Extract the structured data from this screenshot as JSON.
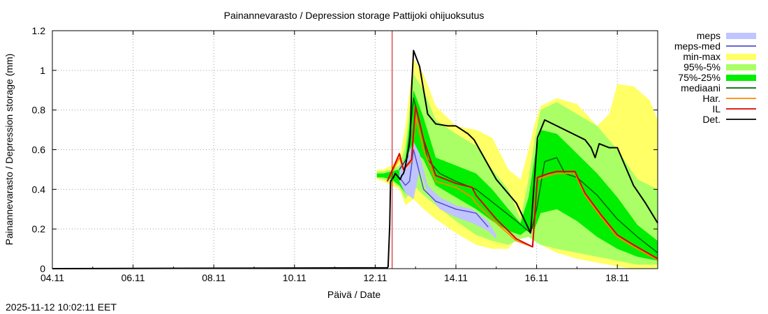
{
  "chart_data": {
    "type": "area",
    "title": "Painannevarasto / Depression storage    Pattijoki ohijuoksutus",
    "xlabel": "Päivä / Date",
    "ylabel": "Painannevarasto / Depression storage (mm)",
    "timestamp": "2025-11-12 10:02:11 EET",
    "x_range_days": [
      0,
      15
    ],
    "ylim": [
      0,
      1.2
    ],
    "x_ticks": [
      {
        "day": 0,
        "label": "04.11"
      },
      {
        "day": 2,
        "label": "06.11"
      },
      {
        "day": 4,
        "label": "08.11"
      },
      {
        "day": 6,
        "label": "10.11"
      },
      {
        "day": 8,
        "label": "12.11"
      },
      {
        "day": 10,
        "label": "14.11"
      },
      {
        "day": 12,
        "label": "16.11"
      },
      {
        "day": 14,
        "label": "18.11"
      }
    ],
    "y_ticks": [
      {
        "value": 0,
        "label": "0"
      },
      {
        "value": 0.2,
        "label": "0.2"
      },
      {
        "value": 0.4,
        "label": "0.4"
      },
      {
        "value": 0.6,
        "label": "0.6"
      },
      {
        "value": 0.8,
        "label": "0.8"
      },
      {
        "value": 1.0,
        "label": "1"
      },
      {
        "value": 1.2,
        "label": "1.2"
      }
    ],
    "forecast_start_day": 8.42,
    "colors": {
      "minmax": "#ffff66",
      "p95_5": "#aaff66",
      "p75_25": "#00ee00",
      "meps": "#c0c4ff",
      "meps_med": "#5050d0",
      "mediaani": "#006400",
      "har": "#ff8800",
      "il": "#dd0000",
      "det": "#000000",
      "forecast_line": "#cc0000",
      "grid": "#a0a0a0"
    },
    "legend": [
      {
        "key": "meps",
        "label": "meps",
        "style": "band",
        "color": "#c0c4ff"
      },
      {
        "key": "meps_med",
        "label": "meps-med",
        "style": "line",
        "color": "#5050d0"
      },
      {
        "key": "minmax",
        "label": "min-max",
        "style": "band",
        "color": "#ffff66"
      },
      {
        "key": "p95_5",
        "label": "95%-5%",
        "style": "band",
        "color": "#aaff66"
      },
      {
        "key": "p75_25",
        "label": "75%-25%",
        "style": "band",
        "color": "#00ee00"
      },
      {
        "key": "mediaani",
        "label": "mediaani",
        "style": "line",
        "color": "#006400"
      },
      {
        "key": "har",
        "label": "Har.",
        "style": "line",
        "color": "#ff8800"
      },
      {
        "key": "il",
        "label": "IL",
        "style": "line",
        "color": "#dd0000"
      },
      {
        "key": "det",
        "label": "Det.",
        "style": "line",
        "color": "#000000"
      }
    ],
    "bands": {
      "minmax": {
        "x": [
          8.04,
          8.2,
          8.4,
          8.6,
          8.75,
          8.95,
          9.2,
          9.5,
          10.0,
          10.5,
          10.9,
          11.3,
          11.6,
          11.8,
          11.95,
          12.1,
          12.5,
          13.0,
          13.5,
          13.8,
          14.0,
          14.4,
          14.8,
          15.0
        ],
        "upper": [
          0.5,
          0.5,
          0.52,
          0.55,
          0.72,
          1.06,
          0.98,
          0.82,
          0.72,
          0.7,
          0.66,
          0.5,
          0.45,
          0.6,
          0.73,
          0.82,
          0.86,
          0.83,
          0.72,
          0.78,
          0.93,
          0.92,
          0.85,
          0.75
        ],
        "lower": [
          0.45,
          0.44,
          0.42,
          0.4,
          0.32,
          0.35,
          0.3,
          0.25,
          0.18,
          0.12,
          0.1,
          0.1,
          0.18,
          0.17,
          0.15,
          0.12,
          0.08,
          0.05,
          0.03,
          0.02,
          0.01,
          0.0,
          0.0,
          0.0
        ]
      },
      "p95_5": {
        "x": [
          8.04,
          8.2,
          8.4,
          8.6,
          8.75,
          8.95,
          9.2,
          9.5,
          10.0,
          10.5,
          10.9,
          11.3,
          11.6,
          11.8,
          11.95,
          12.1,
          12.5,
          13.0,
          13.5,
          14.0,
          14.5,
          15.0
        ],
        "upper": [
          0.49,
          0.49,
          0.5,
          0.52,
          0.62,
          0.98,
          0.9,
          0.75,
          0.68,
          0.62,
          0.5,
          0.4,
          0.25,
          0.45,
          0.65,
          0.8,
          0.84,
          0.78,
          0.72,
          0.6,
          0.45,
          0.4
        ],
        "lower": [
          0.46,
          0.45,
          0.44,
          0.41,
          0.35,
          0.42,
          0.37,
          0.32,
          0.24,
          0.17,
          0.14,
          0.12,
          0.15,
          0.16,
          0.14,
          0.12,
          0.1,
          0.08,
          0.06,
          0.04,
          0.02,
          0.02
        ]
      },
      "p75_25": {
        "x": [
          8.04,
          8.2,
          8.4,
          8.6,
          8.75,
          8.95,
          9.2,
          9.5,
          10.0,
          10.5,
          10.9,
          11.3,
          11.6,
          11.8,
          11.95,
          12.1,
          12.5,
          13.0,
          13.5,
          14.0,
          14.5,
          15.0
        ],
        "upper": [
          0.48,
          0.48,
          0.49,
          0.5,
          0.56,
          0.9,
          0.76,
          0.56,
          0.52,
          0.48,
          0.4,
          0.3,
          0.23,
          0.36,
          0.56,
          0.7,
          0.68,
          0.58,
          0.48,
          0.36,
          0.22,
          0.14
        ],
        "lower": [
          0.46,
          0.46,
          0.45,
          0.42,
          0.38,
          0.6,
          0.55,
          0.42,
          0.36,
          0.3,
          0.24,
          0.19,
          0.17,
          0.2,
          0.2,
          0.28,
          0.3,
          0.24,
          0.16,
          0.1,
          0.06,
          0.04
        ]
      },
      "meps": {
        "x": [
          8.6,
          8.75,
          8.95,
          9.1,
          9.3,
          9.6,
          10.0,
          10.4,
          10.8,
          11.0
        ],
        "upper": [
          0.52,
          0.55,
          0.64,
          0.58,
          0.42,
          0.36,
          0.32,
          0.3,
          0.24,
          0.17
        ],
        "lower": [
          0.44,
          0.38,
          0.35,
          0.5,
          0.38,
          0.3,
          0.26,
          0.23,
          0.19,
          0.15
        ]
      }
    },
    "lines": {
      "det": {
        "x": [
          0,
          7.6,
          8.3,
          8.32,
          8.36,
          8.38,
          8.45,
          8.5,
          8.58,
          8.62,
          8.66,
          8.7,
          8.73,
          8.77,
          8.8,
          8.84,
          8.87,
          8.9,
          8.95,
          9.1,
          9.3,
          9.5,
          9.8,
          10.0,
          10.3,
          10.45,
          11.0,
          11.5,
          11.85,
          12.02,
          12.2,
          12.5,
          13.0,
          13.2,
          13.35,
          13.45,
          13.55,
          13.8,
          14.0,
          14.4,
          14.7,
          15.0
        ],
        "y": [
          0,
          0.004,
          0.004,
          0.01,
          0.22,
          0.44,
          0.46,
          0.48,
          0.46,
          0.45,
          0.47,
          0.48,
          0.5,
          0.54,
          0.58,
          0.62,
          0.67,
          0.9,
          1.1,
          1.02,
          0.78,
          0.73,
          0.72,
          0.72,
          0.68,
          0.65,
          0.45,
          0.33,
          0.18,
          0.66,
          0.75,
          0.72,
          0.67,
          0.65,
          0.61,
          0.56,
          0.63,
          0.61,
          0.61,
          0.42,
          0.33,
          0.23
        ]
      },
      "il": {
        "x": [
          8.3,
          8.6,
          8.7,
          8.9,
          9.0,
          9.2,
          9.5,
          10.0,
          10.4,
          10.5,
          11.0,
          11.5,
          11.9,
          12.02,
          12.3,
          12.5,
          12.7,
          12.95,
          13.2,
          13.6,
          14.0,
          14.4,
          15.0
        ],
        "y": [
          0.44,
          0.58,
          0.5,
          0.55,
          0.82,
          0.65,
          0.47,
          0.43,
          0.41,
          0.37,
          0.25,
          0.15,
          0.11,
          0.46,
          0.48,
          0.49,
          0.49,
          0.49,
          0.38,
          0.27,
          0.17,
          0.12,
          0.05
        ]
      },
      "har": {
        "x": [
          8.3,
          8.6,
          8.7,
          8.9,
          9.0,
          9.2,
          9.5,
          10.0,
          10.4,
          10.5,
          11.0,
          11.5,
          11.9,
          12.02,
          12.3,
          12.5,
          12.7,
          12.95,
          13.2,
          13.6,
          14.0,
          14.4,
          15.0
        ],
        "y": [
          0.44,
          0.56,
          0.5,
          0.54,
          0.77,
          0.6,
          0.44,
          0.41,
          0.36,
          0.33,
          0.23,
          0.14,
          0.11,
          0.45,
          0.47,
          0.48,
          0.48,
          0.48,
          0.37,
          0.26,
          0.16,
          0.11,
          0.045
        ]
      },
      "mediaani": {
        "x": [
          8.6,
          8.8,
          8.95,
          9.1,
          9.3,
          9.6,
          10.0,
          10.5,
          11.0,
          11.5,
          11.85,
          12.0,
          12.2,
          12.5,
          12.7,
          13.0,
          13.5,
          14.0,
          14.5,
          15.0
        ],
        "y": [
          0.5,
          0.56,
          0.86,
          0.74,
          0.55,
          0.48,
          0.44,
          0.4,
          0.32,
          0.24,
          0.18,
          0.3,
          0.54,
          0.56,
          0.48,
          0.46,
          0.37,
          0.25,
          0.16,
          0.08
        ]
      },
      "meps_med": {
        "x": [
          8.6,
          8.75,
          8.85,
          8.95,
          9.05,
          9.2,
          9.5,
          10.0,
          10.5,
          10.8
        ],
        "y": [
          0.46,
          0.42,
          0.44,
          0.6,
          0.52,
          0.4,
          0.34,
          0.3,
          0.28,
          0.21
        ]
      }
    }
  }
}
